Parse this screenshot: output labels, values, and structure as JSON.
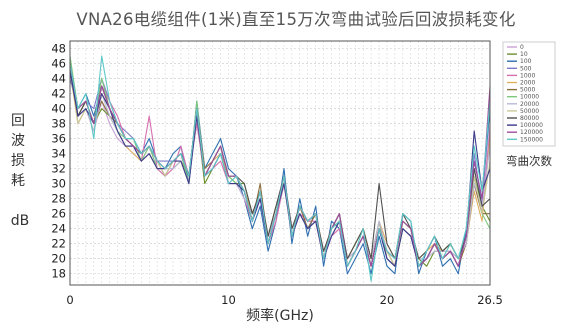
{
  "chart_data": {
    "type": "line",
    "title": "VNA26电缆组件(1米)直至15万次弯曲试验后回波损耗变化",
    "xlabel": "频率(GHz)",
    "ylabel": [
      "回",
      "波",
      "损",
      "耗"
    ],
    "yunit": "dB",
    "xlim": [
      0,
      26.5
    ],
    "ylim": [
      16.5,
      49
    ],
    "x_ticks": [
      "0",
      "10",
      "20",
      "26.5"
    ],
    "x_tick_values": [
      0,
      10,
      20,
      26.5
    ],
    "y_ticks": [
      18,
      20,
      22,
      24,
      26,
      28,
      30,
      32,
      34,
      36,
      38,
      40,
      42,
      44,
      46,
      48
    ],
    "grid": true,
    "legend_title": "弯曲次数",
    "legend_position": "right",
    "x": [
      0,
      0.5,
      1,
      1.5,
      2,
      2.5,
      3,
      3.5,
      4,
      4.5,
      5,
      5.5,
      6,
      6.5,
      7,
      7.5,
      8,
      8.5,
      9,
      9.5,
      10,
      10.5,
      11,
      11.5,
      12,
      12.5,
      13,
      13.5,
      14,
      14.5,
      15,
      15.5,
      16,
      16.5,
      17,
      17.5,
      18,
      18.5,
      19,
      19.5,
      20,
      20.5,
      21,
      21.5,
      22,
      22.5,
      23,
      23.5,
      24,
      24.5,
      25,
      25.5,
      26,
      26.5
    ],
    "series": [
      {
        "name": "0",
        "color": "#c8a0d6",
        "values": [
          47,
          38,
          40,
          37,
          41,
          38,
          36,
          35,
          34,
          33,
          35,
          32,
          31,
          33,
          34,
          30,
          40,
          31,
          33,
          35,
          30,
          31,
          29,
          25,
          29,
          22,
          26,
          31,
          23,
          27,
          25,
          26,
          20,
          24,
          26,
          19,
          21,
          23,
          19,
          24,
          21,
          20,
          25,
          24,
          19,
          20,
          22,
          20,
          21,
          19,
          23,
          32,
          26,
          38
        ]
      },
      {
        "name": "10",
        "color": "#6b8f2e",
        "values": [
          46,
          39,
          41,
          38,
          40,
          39,
          37,
          35,
          35,
          33,
          34,
          32,
          32,
          32,
          33,
          31,
          39,
          30,
          32,
          34,
          31,
          30,
          30,
          26,
          28,
          23,
          27,
          30,
          24,
          26,
          24,
          25,
          21,
          23,
          25,
          20,
          22,
          24,
          20,
          25,
          20,
          19,
          24,
          23,
          20,
          19,
          21,
          21,
          22,
          20,
          22,
          31,
          27,
          25
        ]
      },
      {
        "name": "100",
        "color": "#2e6fb0",
        "values": [
          45,
          40,
          42,
          39,
          43,
          40,
          38,
          36,
          36,
          34,
          36,
          33,
          32,
          34,
          35,
          30,
          41,
          32,
          34,
          36,
          32,
          31,
          28,
          24,
          27,
          21,
          25,
          32,
          22,
          28,
          23,
          27,
          19,
          25,
          24,
          18,
          20,
          22,
          18,
          23,
          19,
          18,
          26,
          25,
          18,
          21,
          23,
          19,
          20,
          18,
          24,
          33,
          28,
          40
        ]
      },
      {
        "name": "500",
        "color": "#7a7ac8",
        "values": [
          44,
          40,
          41,
          40,
          44,
          41,
          38,
          37,
          36,
          34,
          35,
          33,
          33,
          33,
          34,
          31,
          40,
          31,
          33,
          35,
          31,
          31,
          29,
          25,
          28,
          22,
          26,
          31,
          23,
          27,
          24,
          26,
          20,
          24,
          25,
          19,
          21,
          23,
          19,
          24,
          20,
          19,
          25,
          24,
          19,
          20,
          22,
          20,
          21,
          19,
          23,
          34,
          27,
          42
        ]
      },
      {
        "name": "1000",
        "color": "#d66fae",
        "values": [
          46,
          39,
          40,
          38,
          43,
          41,
          39,
          36,
          35,
          33,
          39,
          32,
          31,
          32,
          35,
          31,
          38,
          31,
          32,
          33,
          30,
          30,
          28,
          25,
          28,
          22,
          25,
          30,
          23,
          26,
          25,
          25,
          20,
          23,
          24,
          20,
          21,
          23,
          19,
          24,
          21,
          20,
          24,
          23,
          19,
          20,
          22,
          21,
          21,
          20,
          23,
          30,
          26,
          37
        ]
      },
      {
        "name": "2000",
        "color": "#e0b060",
        "values": [
          45,
          38,
          40,
          37,
          42,
          40,
          37,
          35,
          34,
          33,
          34,
          32,
          32,
          33,
          33,
          30,
          39,
          31,
          33,
          34,
          31,
          31,
          29,
          26,
          29,
          23,
          26,
          30,
          24,
          27,
          25,
          26,
          21,
          24,
          25,
          20,
          22,
          24,
          20,
          25,
          22,
          20,
          25,
          24,
          20,
          21,
          22,
          21,
          22,
          20,
          22,
          29,
          25,
          36
        ]
      },
      {
        "name": "5000",
        "color": "#8c6f3c",
        "values": [
          46,
          39,
          41,
          38,
          41,
          39,
          38,
          36,
          35,
          34,
          35,
          33,
          31,
          33,
          34,
          31,
          40,
          32,
          33,
          35,
          31,
          31,
          29,
          25,
          30,
          22,
          26,
          31,
          23,
          27,
          24,
          26,
          20,
          24,
          26,
          19,
          21,
          23,
          19,
          24,
          21,
          19,
          25,
          24,
          19,
          20,
          22,
          20,
          21,
          19,
          22,
          30,
          26,
          26
        ]
      },
      {
        "name": "10000",
        "color": "#7ec87e",
        "values": [
          47,
          40,
          41,
          38,
          44,
          40,
          37,
          36,
          36,
          33,
          35,
          32,
          32,
          33,
          34,
          30,
          41,
          31,
          33,
          35,
          31,
          30,
          29,
          25,
          29,
          22,
          26,
          31,
          23,
          27,
          25,
          26,
          20,
          24,
          26,
          19,
          21,
          23,
          19,
          24,
          21,
          20,
          25,
          24,
          19,
          20,
          22,
          20,
          22,
          20,
          23,
          31,
          26,
          24
        ]
      },
      {
        "name": "20000",
        "color": "#b8b8d8",
        "values": [
          45,
          39,
          40,
          37,
          42,
          39,
          37,
          35,
          35,
          33,
          34,
          32,
          32,
          32,
          33,
          30,
          39,
          31,
          32,
          34,
          30,
          30,
          28,
          26,
          28,
          23,
          26,
          30,
          24,
          26,
          24,
          25,
          21,
          23,
          25,
          20,
          21,
          23,
          20,
          25,
          21,
          20,
          24,
          23,
          20,
          20,
          21,
          21,
          21,
          20,
          22,
          30,
          27,
          35
        ]
      },
      {
        "name": "50000",
        "color": "#c8c898",
        "values": [
          46,
          38,
          40,
          38,
          42,
          40,
          38,
          36,
          35,
          34,
          35,
          33,
          31,
          33,
          34,
          31,
          40,
          31,
          33,
          35,
          31,
          31,
          29,
          25,
          29,
          22,
          26,
          31,
          23,
          27,
          25,
          26,
          20,
          24,
          25,
          19,
          21,
          23,
          19,
          24,
          21,
          19,
          25,
          24,
          19,
          20,
          22,
          20,
          21,
          19,
          23,
          31,
          26,
          33
        ]
      },
      {
        "name": "80000",
        "color": "#505050",
        "values": [
          46,
          39,
          41,
          38,
          43,
          40,
          38,
          36,
          35,
          34,
          35,
          33,
          32,
          33,
          34,
          31,
          40,
          31,
          33,
          35,
          31,
          31,
          30,
          26,
          29,
          23,
          27,
          31,
          24,
          27,
          25,
          26,
          21,
          24,
          26,
          20,
          22,
          24,
          20,
          30,
          22,
          20,
          26,
          24,
          20,
          21,
          23,
          21,
          22,
          20,
          23,
          32,
          27,
          28
        ]
      },
      {
        "name": "100000",
        "color": "#3a3a8c",
        "values": [
          45,
          39,
          40,
          38,
          42,
          40,
          37,
          35,
          35,
          33,
          34,
          32,
          32,
          33,
          33,
          30,
          39,
          31,
          32,
          34,
          30,
          30,
          29,
          25,
          28,
          22,
          26,
          30,
          23,
          26,
          24,
          25,
          20,
          23,
          25,
          19,
          21,
          23,
          19,
          24,
          20,
          19,
          24,
          23,
          19,
          20,
          22,
          20,
          21,
          19,
          23,
          37,
          29,
          32
        ]
      },
      {
        "name": "120000",
        "color": "#a04c9c",
        "values": [
          46,
          40,
          41,
          38,
          43,
          40,
          38,
          36,
          35,
          34,
          35,
          33,
          32,
          33,
          34,
          31,
          40,
          31,
          33,
          35,
          31,
          31,
          29,
          25,
          29,
          22,
          26,
          31,
          23,
          27,
          25,
          26,
          20,
          24,
          26,
          19,
          21,
          23,
          19,
          24,
          21,
          20,
          25,
          24,
          19,
          20,
          22,
          20,
          21,
          19,
          23,
          33,
          28,
          43
        ]
      },
      {
        "name": "150000",
        "color": "#5ec8c8",
        "values": [
          46,
          40,
          42,
          36,
          47,
          41,
          38,
          36,
          36,
          34,
          35,
          33,
          32,
          33,
          34,
          31,
          40,
          31,
          32,
          34,
          30,
          31,
          29,
          25,
          29,
          22,
          26,
          31,
          23,
          27,
          25,
          26,
          20,
          24,
          25,
          19,
          21,
          24,
          17,
          24,
          21,
          20,
          26,
          25,
          19,
          21,
          23,
          20,
          22,
          20,
          24,
          35,
          29,
          41
        ]
      }
    ]
  }
}
